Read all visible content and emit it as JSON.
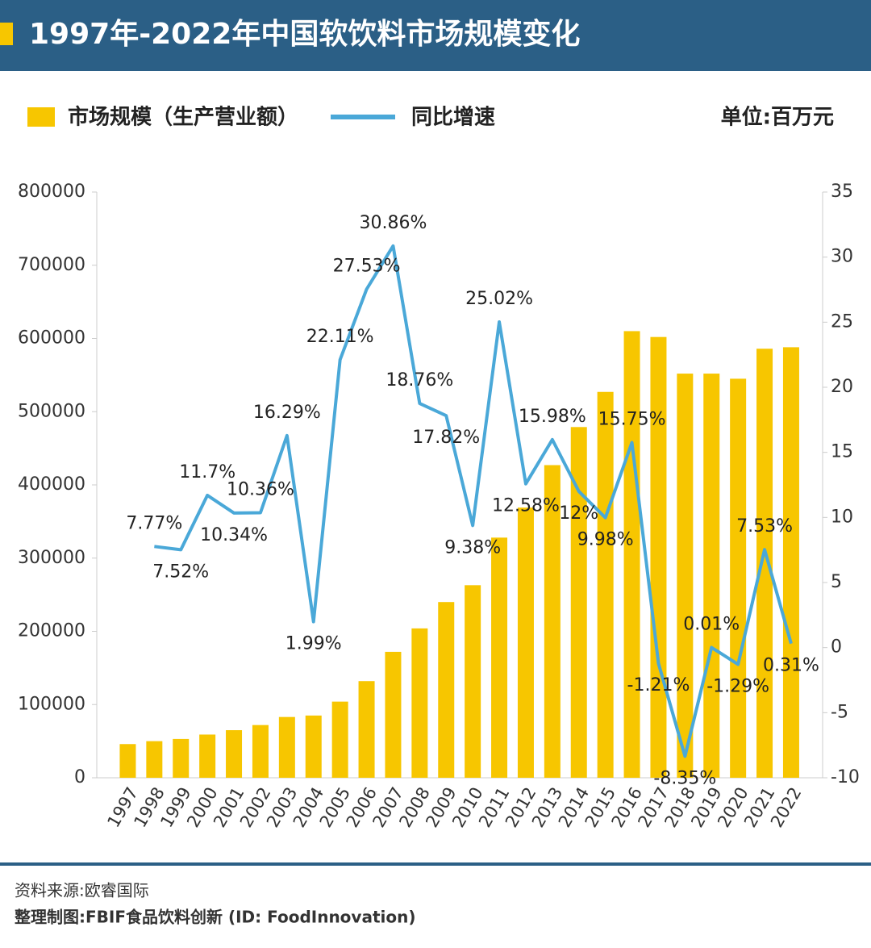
{
  "chart_data": {
    "type": "bar-line",
    "title": "1997年-2022年中国软饮料市场规模变化",
    "unit": "单位:百万元",
    "categories": [
      "1997",
      "1998",
      "1999",
      "2000",
      "2001",
      "2002",
      "2003",
      "2004",
      "2005",
      "2006",
      "2007",
      "2008",
      "2009",
      "2010",
      "2011",
      "2012",
      "2013",
      "2014",
      "2015",
      "2016",
      "2017",
      "2018",
      "2019",
      "2020",
      "2021",
      "2022"
    ],
    "series": [
      {
        "name": "市场规模（生产营业额）",
        "type": "bar",
        "color": "#f7c600",
        "values": [
          46000,
          50000,
          53000,
          59000,
          65000,
          72000,
          83000,
          85000,
          104000,
          132000,
          172000,
          204000,
          240000,
          263000,
          328000,
          369000,
          427000,
          479000,
          527000,
          610000,
          602000,
          552000,
          552000,
          545000,
          586000,
          588000
        ]
      },
      {
        "name": "同比增速",
        "type": "line",
        "axis": "y2",
        "color": "#4aa8d8",
        "values": [
          null,
          7.77,
          7.52,
          11.7,
          10.34,
          10.36,
          16.29,
          1.99,
          22.11,
          27.53,
          30.86,
          18.76,
          17.82,
          9.38,
          25.02,
          12.58,
          15.98,
          12,
          9.98,
          15.75,
          -1.21,
          -8.35,
          0.01,
          -1.29,
          7.53,
          0.31
        ],
        "value_labels": [
          null,
          "7.77%",
          "7.52%",
          "11.7%",
          "10.34%",
          "10.36%",
          "16.29%",
          "1.99%",
          "22.11%",
          "27.53%",
          "30.86%",
          "18.76%",
          "17.82%",
          "9.38%",
          "25.02%",
          "12.58%",
          "15.98%",
          "12%",
          "9.98%",
          "15.75%",
          "-1.21%",
          "-8.35%",
          "0.01%",
          "-1.29%",
          "7.53%",
          "0.31%"
        ]
      }
    ],
    "ylim": [
      0,
      800000
    ],
    "yticks": [
      0,
      100000,
      200000,
      300000,
      400000,
      500000,
      600000,
      700000,
      800000
    ],
    "y2lim": [
      -10,
      35
    ],
    "y2ticks": [
      -10,
      -5,
      0,
      5,
      10,
      15,
      20,
      25,
      30,
      35
    ],
    "source": "资料来源:欧睿国际",
    "credit": "整理制图:FBIF食品饮料创新 (ID: FoodInnovation)"
  }
}
